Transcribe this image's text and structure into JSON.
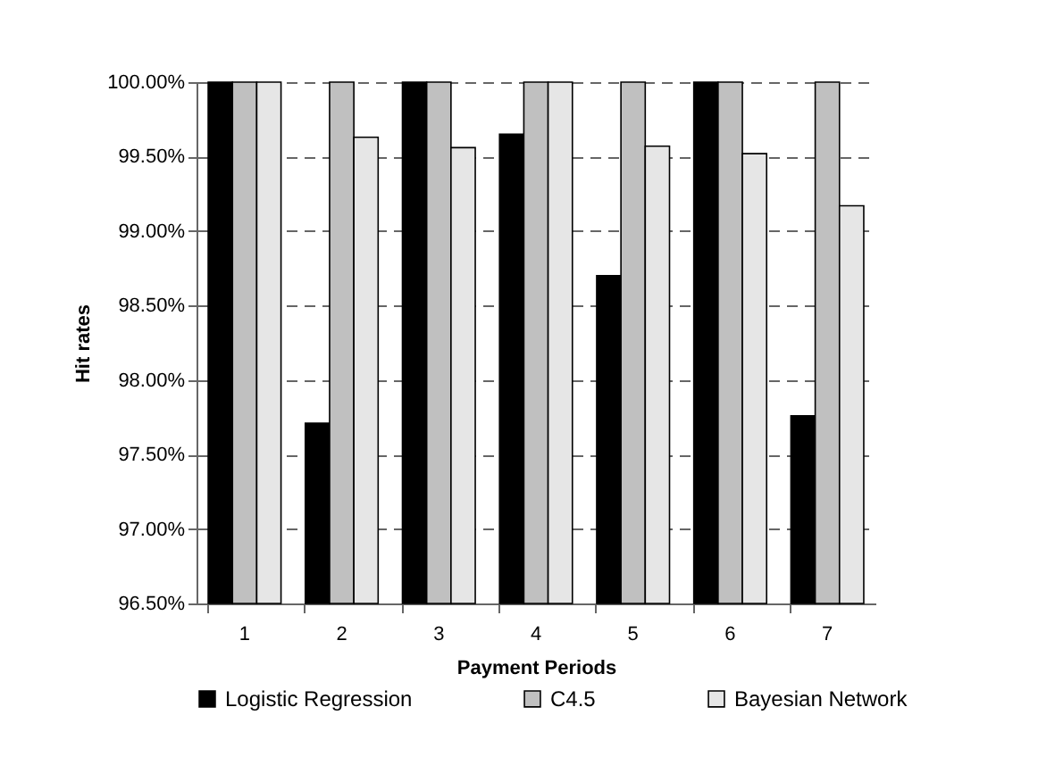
{
  "chart_data": {
    "type": "bar",
    "xlabel": "Payment Periods",
    "ylabel": "Hit rates",
    "categories": [
      "1",
      "2",
      "3",
      "4",
      "5",
      "6",
      "7"
    ],
    "series": [
      {
        "name": "Logistic Regression",
        "color": "#000000",
        "values": [
          100,
          97.71,
          100,
          99.65,
          98.7,
          100,
          97.76
        ]
      },
      {
        "name": "C4.5",
        "color": "#c0c0c0",
        "values": [
          100,
          100,
          100,
          100,
          100,
          100,
          100
        ]
      },
      {
        "name": "Bayesian Network",
        "color": "#e6e6e6",
        "values": [
          100,
          99.63,
          99.56,
          100,
          99.57,
          99.52,
          99.17
        ]
      }
    ],
    "ylim": [
      96.5,
      100
    ],
    "yticks": [
      {
        "value": 96.5,
        "label": "96.50%"
      },
      {
        "value": 97,
        "label": "97.00%"
      },
      {
        "value": 97.5,
        "label": "97.50%"
      },
      {
        "value": 98,
        "label": "98.00%"
      },
      {
        "value": 98.5,
        "label": "98.50%"
      },
      {
        "value": 99,
        "label": "99.00%"
      },
      {
        "value": 99.5,
        "label": "99.50%"
      },
      {
        "value": 100,
        "label": "100.00%"
      }
    ],
    "grid": "y",
    "legend": "bottom"
  }
}
